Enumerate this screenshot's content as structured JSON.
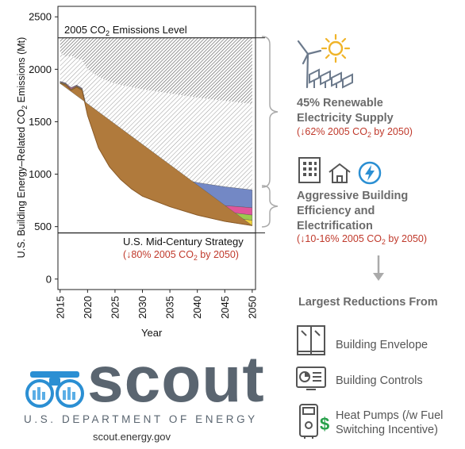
{
  "chart_data": {
    "type": "area",
    "ylabel_parts": [
      "U.S. Building Energy–Related CO",
      "2",
      " Emissions (Mt)"
    ],
    "xlabel": "Year",
    "ylim": [
      -100,
      2600
    ],
    "xlim": [
      2014.6,
      2050.6
    ],
    "yticks": [
      "0",
      "500",
      "1000",
      "1500",
      "2000",
      "2500"
    ],
    "xticks": [
      "2015",
      "2020",
      "2025",
      "2030",
      "2035",
      "2040",
      "2045",
      "2050"
    ],
    "grid": false,
    "reference_lines": [
      {
        "name_parts": [
          "2005 CO",
          "2",
          " Emissions Level"
        ],
        "y": 2300
      },
      {
        "name": "U.S. Mid-Century Strategy",
        "sub_parts": [
          "(↓80% 2005 CO",
          "2",
          " by 2050)"
        ],
        "y": 440
      }
    ],
    "x": [
      2015,
      2016,
      2017,
      2018,
      2019,
      2020,
      2022,
      2024,
      2026,
      2028,
      2030,
      2035,
      2040,
      2045,
      2050
    ],
    "series": [
      {
        "color": "#b07a3c",
        "values": [
          1865,
          1850,
          1800,
          1830,
          1800,
          1560,
          1250,
          1070,
          950,
          860,
          790,
          690,
          610,
          550,
          510
        ]
      },
      {
        "color": "#f0d23c",
        "values": [
          1870,
          1855,
          1805,
          1835,
          1805,
          1570,
          1260,
          1085,
          965,
          880,
          815,
          720,
          650,
          595,
          560
        ]
      },
      {
        "color": "#9ccb4e",
        "values": [
          1875,
          1860,
          1810,
          1840,
          1810,
          1580,
          1275,
          1100,
          985,
          900,
          840,
          755,
          690,
          640,
          610
        ]
      },
      {
        "color": "#e0559b",
        "values": [
          1880,
          1865,
          1820,
          1845,
          1815,
          1590,
          1290,
          1120,
          1010,
          930,
          875,
          800,
          740,
          700,
          680
        ]
      },
      {
        "color": "#7388c5",
        "values": [
          1885,
          1870,
          1825,
          1850,
          1820,
          1600,
          1350,
          1220,
          1140,
          1080,
          1050,
          980,
          920,
          880,
          850
        ]
      },
      {
        "color": "#8c8c8c",
        "hatched": true,
        "values": [
          2160,
          2120,
          2130,
          2100,
          2090,
          2000,
          1930,
          1880,
          1850,
          1830,
          1810,
          1770,
          1730,
          1700,
          1670
        ]
      }
    ],
    "remaining_band": {
      "from_top": 1670,
      "to": 2300,
      "note": "dark hatched"
    }
  },
  "renewable": {
    "head_line1": "45% Renewable",
    "head_line2": "Electricity Supply",
    "sub_parts": [
      "(↓62% 2005 CO",
      "2",
      " by 2050)"
    ]
  },
  "building": {
    "head_line1": "Aggressive Building",
    "head_line2": "Efficiency and",
    "head_line3": "Electrification",
    "sub_parts": [
      "(↓10-16% 2005 CO",
      "2",
      " by 2050)"
    ]
  },
  "largest": {
    "heading": "Largest Reductions From",
    "items": [
      {
        "label": "Building Envelope",
        "icon": "window-icon"
      },
      {
        "label": "Building Controls",
        "icon": "controls-icon"
      },
      {
        "label_line1": "Heat Pumps (/w Fuel",
        "label_line2": "Switching Incentive)",
        "icon": "heat-pump-icon"
      }
    ]
  },
  "logo": {
    "wordmark": "scout",
    "org": "U.S. DEPARTMENT OF ENERGY",
    "url": "scout.energy.gov"
  },
  "colors": {
    "accent_red": "#c0392b",
    "gray_text": "#6b6b6b",
    "logo_blue": "#2b8fd3",
    "logo_gray": "#5a6570"
  }
}
